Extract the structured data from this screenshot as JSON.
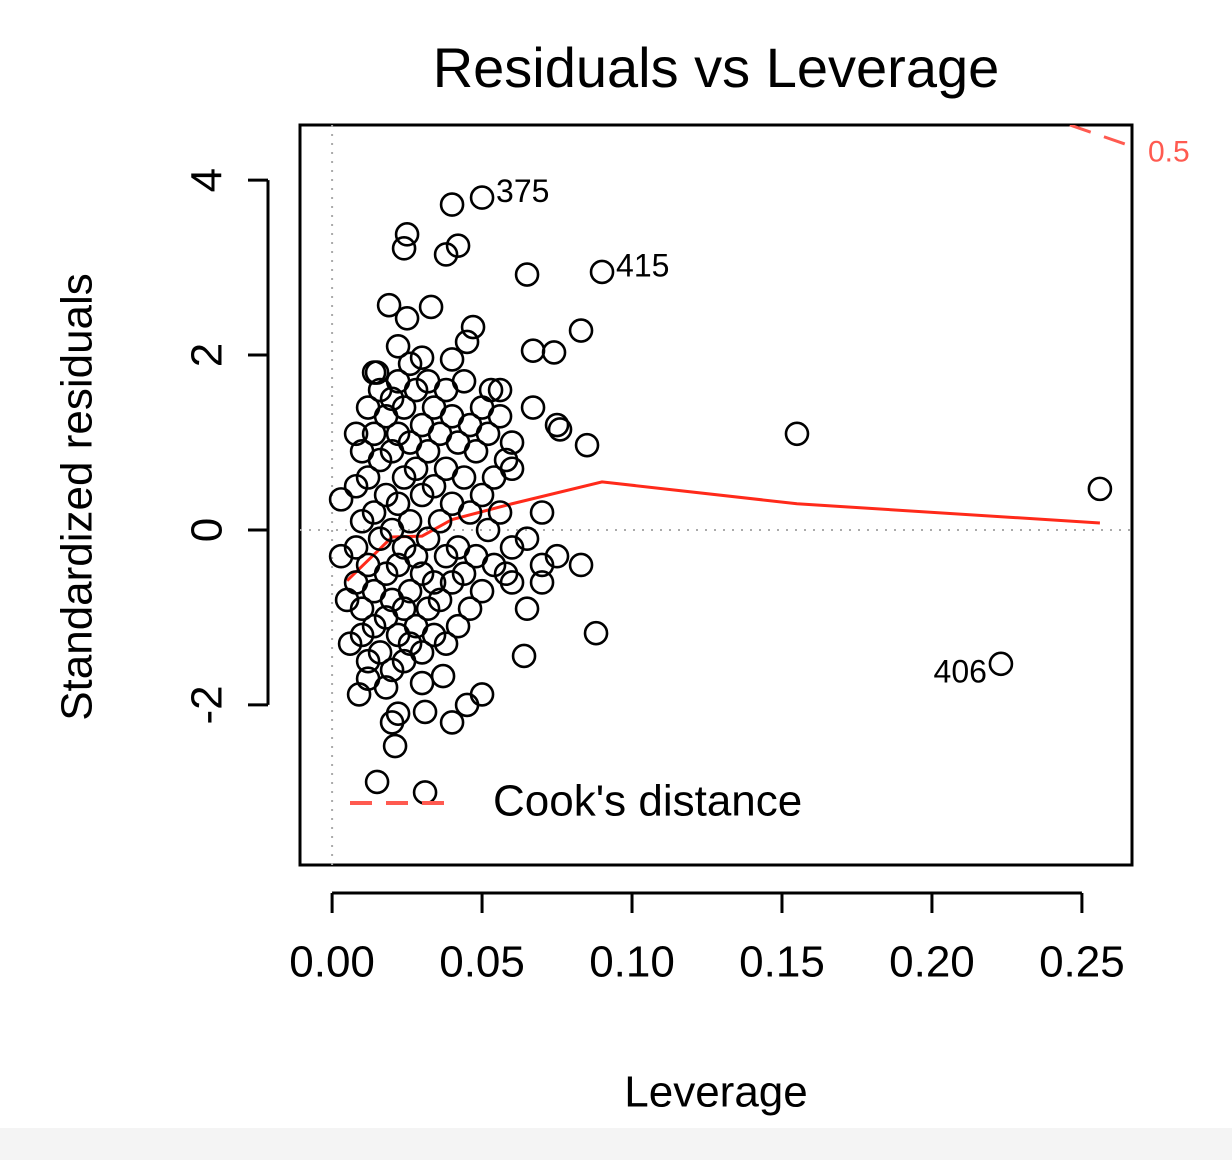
{
  "chart_data": {
    "type": "scatter",
    "title": "Residuals vs Leverage",
    "x_label": "Leverage",
    "y_label": "Standardized residuals",
    "xlim": [
      -0.0107,
      0.2667
    ],
    "ylim": [
      -3.83,
      4.63
    ],
    "xticks": [
      {
        "value": 0,
        "label": "0.00"
      },
      0.05,
      {
        "value": 0.1,
        "label": "0.10"
      },
      0.15,
      {
        "value": 0.2,
        "label": "0.20"
      },
      0.25
    ],
    "yticks": [
      -2,
      0,
      2,
      4
    ],
    "reference_lines": {
      "x": 0,
      "y": 0
    },
    "points": {
      "color": "#000000",
      "x": [
        0.04,
        0.038,
        0.042,
        0.025,
        0.024,
        0.065,
        0.083,
        0.067,
        0.074,
        0.019,
        0.033,
        0.025,
        0.047,
        0.045,
        0.022,
        0.03,
        0.015,
        0.04,
        0.053,
        0.056,
        0.067,
        0.075,
        0.076,
        0.085,
        0.155,
        0.256,
        0.06,
        0.06,
        0.07,
        0.065,
        0.06,
        0.07,
        0.083,
        0.075,
        0.07,
        0.065,
        0.088,
        0.064,
        0.05,
        0.045,
        0.04,
        0.031,
        0.022,
        0.02,
        0.021,
        0.015,
        0.031,
        0.009,
        0.012,
        0.006,
        0.037,
        0.03,
        0.008,
        0.003,
        0.003,
        0.005,
        0.008,
        0.008,
        0.008,
        0.01,
        0.01,
        0.01,
        0.01,
        0.012,
        0.012,
        0.012,
        0.012,
        0.014,
        0.014,
        0.014,
        0.014,
        0.014,
        0.016,
        0.016,
        0.016,
        0.016,
        0.018,
        0.018,
        0.018,
        0.018,
        0.018,
        0.02,
        0.02,
        0.02,
        0.02,
        0.02,
        0.022,
        0.022,
        0.022,
        0.022,
        0.022,
        0.024,
        0.024,
        0.024,
        0.024,
        0.024,
        0.026,
        0.026,
        0.026,
        0.026,
        0.026,
        0.028,
        0.028,
        0.028,
        0.028,
        0.03,
        0.03,
        0.03,
        0.03,
        0.032,
        0.032,
        0.032,
        0.032,
        0.034,
        0.034,
        0.034,
        0.034,
        0.036,
        0.036,
        0.036,
        0.038,
        0.038,
        0.038,
        0.038,
        0.04,
        0.04,
        0.04,
        0.042,
        0.042,
        0.042,
        0.044,
        0.044,
        0.044,
        0.046,
        0.046,
        0.046,
        0.048,
        0.048,
        0.05,
        0.05,
        0.05,
        0.052,
        0.052,
        0.054,
        0.054,
        0.056,
        0.056,
        0.058,
        0.058,
        0.06
      ],
      "y": [
        3.72,
        3.15,
        3.25,
        3.38,
        3.22,
        2.92,
        2.28,
        2.05,
        2.03,
        2.57,
        2.55,
        2.42,
        2.32,
        2.15,
        2.1,
        1.97,
        1.8,
        1.95,
        1.6,
        1.6,
        1.4,
        1.2,
        1.15,
        0.97,
        1.1,
        0.47,
        1.0,
        0.7,
        0.2,
        -0.1,
        -0.2,
        -0.4,
        -0.4,
        -0.3,
        -0.6,
        -0.9,
        -1.18,
        -1.44,
        -1.88,
        -2.0,
        -2.2,
        -2.08,
        -2.1,
        -2.2,
        -2.47,
        -2.88,
        -3.0,
        -1.88,
        -1.7,
        -1.3,
        -1.67,
        -1.75,
        1.1,
        0.35,
        -0.3,
        -0.8,
        0.5,
        -0.2,
        -0.6,
        0.9,
        0.1,
        -0.9,
        -1.2,
        1.4,
        0.6,
        -0.4,
        -1.5,
        1.8,
        1.1,
        0.2,
        -0.7,
        -1.1,
        1.6,
        0.8,
        -0.1,
        -1.4,
        1.3,
        0.4,
        -0.5,
        -1.0,
        -1.8,
        1.5,
        0.9,
        0.0,
        -0.8,
        -1.6,
        1.7,
        1.1,
        0.3,
        -0.4,
        -1.2,
        1.4,
        0.6,
        -0.2,
        -0.9,
        -1.5,
        1.9,
        1.0,
        0.1,
        -0.7,
        -1.3,
        1.6,
        0.7,
        -0.3,
        -1.1,
        1.2,
        0.4,
        -0.5,
        -1.4,
        1.7,
        0.9,
        -0.1,
        -0.9,
        1.4,
        0.5,
        -0.6,
        -1.2,
        1.1,
        0.1,
        -0.8,
        1.6,
        0.7,
        -0.3,
        -1.3,
        1.3,
        0.3,
        -0.6,
        1.0,
        -0.2,
        -1.1,
        1.7,
        0.6,
        -0.5,
        1.2,
        0.2,
        -0.9,
        0.9,
        -0.3,
        1.4,
        0.4,
        -0.7,
        1.1,
        0.0,
        0.6,
        -0.4,
        1.3,
        0.2,
        0.8,
        -0.5,
        -0.6
      ]
    },
    "labeled_points": {
      "color": "#000000",
      "x": [
        0.05,
        0.09,
        0.223
      ],
      "y": [
        3.8,
        2.95,
        -1.53
      ],
      "labels": [
        "375",
        "415",
        "406"
      ]
    },
    "smooth": {
      "color": "#ff2a1a",
      "x": [
        0.005,
        0.02,
        0.03,
        0.04,
        0.06,
        0.09,
        0.155,
        0.256
      ],
      "y": [
        -0.58,
        -0.08,
        -0.07,
        0.12,
        0.3,
        0.55,
        0.3,
        0.08
      ]
    },
    "cooks_contour": {
      "color": "#ff5a50",
      "label": "0.5",
      "x": [
        0.246,
        0.268
      ],
      "y": [
        4.63,
        4.37
      ]
    },
    "legend": {
      "label": "Cook's distance"
    }
  }
}
